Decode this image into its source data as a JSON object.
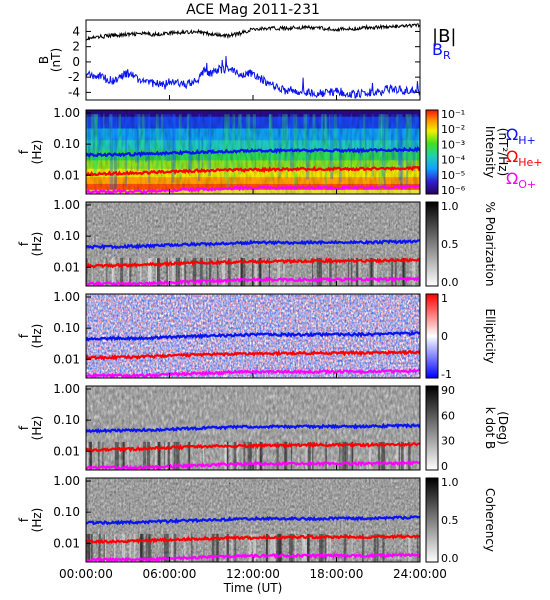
{
  "title": "ACE Mag 2011-231",
  "colors": {
    "black": "#000000",
    "blue": "#0a14f0",
    "red": "#ff0000",
    "magenta": "#ff00ff"
  },
  "chart_data": [
    {
      "type": "line",
      "ylabel": "B\n(nT)",
      "ylabel_lines": [
        "B",
        "(nT)"
      ],
      "yticks": [
        "4",
        "2",
        "0",
        "-2",
        "-4"
      ],
      "ylim": [
        -5,
        5.5
      ],
      "xlim_hours": [
        0,
        24
      ],
      "legend": {
        "B": "|B|",
        "BR_main": "B",
        "BR_sub": "R"
      },
      "series": [
        {
          "name": "|B|",
          "color": "#000000",
          "x": [
            0,
            1,
            2,
            3,
            4,
            5,
            6,
            7,
            8,
            9,
            10,
            11,
            12,
            13,
            14,
            15,
            16,
            17,
            18,
            19,
            20,
            21,
            22,
            23,
            24
          ],
          "values": [
            3.0,
            3.3,
            3.5,
            3.6,
            3.7,
            3.6,
            3.8,
            3.9,
            4.0,
            3.6,
            3.4,
            3.7,
            4.3,
            4.4,
            4.4,
            4.5,
            4.5,
            4.4,
            4.3,
            4.3,
            4.5,
            4.6,
            4.6,
            4.7,
            4.8
          ]
        },
        {
          "name": "B_R",
          "color": "#0a14f0",
          "x": [
            0,
            0.5,
            1,
            2,
            3,
            4,
            5,
            6,
            7,
            8,
            8.5,
            9,
            9.5,
            10,
            11,
            12,
            13,
            14,
            15,
            16,
            17,
            18,
            19,
            20,
            21,
            22,
            23,
            24
          ],
          "values": [
            -1.5,
            -2.0,
            -1.8,
            -2.5,
            -1.5,
            -2.5,
            -3.0,
            -2.5,
            -3.0,
            -2.5,
            -1.0,
            -1.5,
            -1.0,
            -1.0,
            -1.5,
            -1.5,
            -2.8,
            -3.5,
            -3.8,
            -4.0,
            -4.2,
            -3.8,
            -4.2,
            -4.2,
            -3.8,
            -3.5,
            -3.8,
            -4.0
          ]
        }
      ]
    },
    {
      "type": "heatmap",
      "ylabel_lines": [
        "f",
        "(Hz)"
      ],
      "yticks": [
        "1.00",
        "0.10",
        "0.01"
      ],
      "cbar_label_lines": [
        "Intensity",
        "(nT²/Hz)"
      ],
      "cbar_ticks": [
        "10⁻¹",
        "10⁻²",
        "10⁻³",
        "10⁻⁴",
        "10⁻⁵",
        "10⁻⁶"
      ],
      "gyro_legend": [
        {
          "main": "Ω",
          "sub": "H+",
          "color": "#0a14f0"
        },
        {
          "main": "Ω",
          "sub": "He+",
          "color": "#ff0000"
        },
        {
          "main": "Ω",
          "sub": "O+",
          "color": "#ff00ff"
        }
      ]
    },
    {
      "type": "heatmap",
      "ylabel_lines": [
        "f",
        "(Hz)"
      ],
      "yticks": [
        "1.00",
        "0.10",
        "0.01"
      ],
      "cbar_label_lines": [
        "% Polarization"
      ],
      "cbar_ticks": [
        "1.0",
        "0.5",
        "0.0"
      ]
    },
    {
      "type": "heatmap",
      "ylabel_lines": [
        "f",
        "(Hz)"
      ],
      "yticks": [
        "1.00",
        "0.10",
        "0.01"
      ],
      "cbar_label_lines": [
        "Ellipticity"
      ],
      "cbar_ticks": [
        "1",
        "0",
        "-1"
      ]
    },
    {
      "type": "heatmap",
      "ylabel_lines": [
        "f",
        "(Hz)"
      ],
      "yticks": [
        "1.00",
        "0.10",
        "0.01"
      ],
      "cbar_label_lines": [
        "k dot B",
        "(Deg)"
      ],
      "cbar_ticks": [
        "90",
        "60",
        "30",
        "0"
      ]
    },
    {
      "type": "heatmap",
      "ylabel_lines": [
        "f",
        "(Hz)"
      ],
      "yticks": [
        "1.00",
        "0.10",
        "0.01"
      ],
      "cbar_label_lines": [
        "Coherency"
      ],
      "cbar_ticks": [
        "1.0",
        "0.5",
        "0.0"
      ]
    }
  ],
  "gyrofrequency_lines_hz": {
    "H+": {
      "x": [
        0,
        4,
        8,
        12,
        16,
        20,
        24
      ],
      "values": [
        0.045,
        0.048,
        0.055,
        0.062,
        0.062,
        0.063,
        0.068
      ]
    },
    "He+": {
      "x": [
        0,
        4,
        8,
        12,
        16,
        20,
        24
      ],
      "values": [
        0.011,
        0.012,
        0.014,
        0.015,
        0.016,
        0.016,
        0.017
      ]
    },
    "O+": {
      "x": [
        0,
        4,
        8,
        12,
        16,
        20,
        24
      ],
      "values": [
        0.003,
        0.003,
        0.0035,
        0.004,
        0.004,
        0.004,
        0.0043
      ]
    }
  },
  "x_axis": {
    "ticks": [
      "00:00:00",
      "06:00:00",
      "12:00:00",
      "18:00:00",
      "24:00:00"
    ],
    "label": "Time (UT)"
  }
}
